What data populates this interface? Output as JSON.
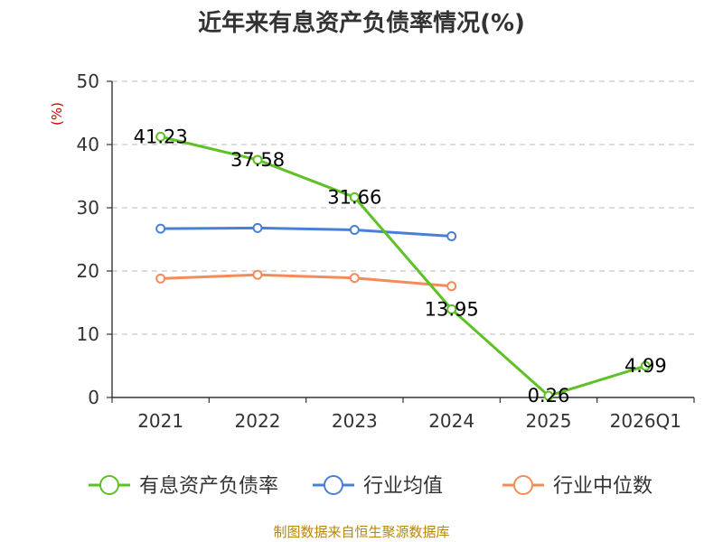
{
  "chart_data": {
    "type": "line",
    "title": "近年来有息资产负债率情况(%)",
    "ylabel": "(%)",
    "xlabel": "",
    "categories": [
      "2021",
      "2022",
      "2023",
      "2024",
      "2025",
      "2026Q1"
    ],
    "ylim": [
      0,
      50
    ],
    "yticks": [
      0,
      10,
      20,
      30,
      40,
      50
    ],
    "grid": true,
    "legend_position": "bottom",
    "series": [
      {
        "name": "有息资产负债率",
        "color": "#5ec125",
        "values": [
          41.23,
          37.58,
          31.66,
          13.95,
          0.26,
          4.99
        ],
        "labels": [
          "41.23",
          "37.58",
          "31.66",
          "13.95",
          "0.26",
          "4.99"
        ]
      },
      {
        "name": "行业均值",
        "color": "#4a7fd6",
        "values": [
          26.7,
          26.8,
          26.5,
          25.5,
          null,
          null
        ]
      },
      {
        "name": "行业中位数",
        "color": "#f28c5c",
        "values": [
          18.8,
          19.4,
          18.9,
          17.6,
          null,
          null
        ]
      }
    ]
  },
  "source": "制图数据来自恒生聚源数据库"
}
